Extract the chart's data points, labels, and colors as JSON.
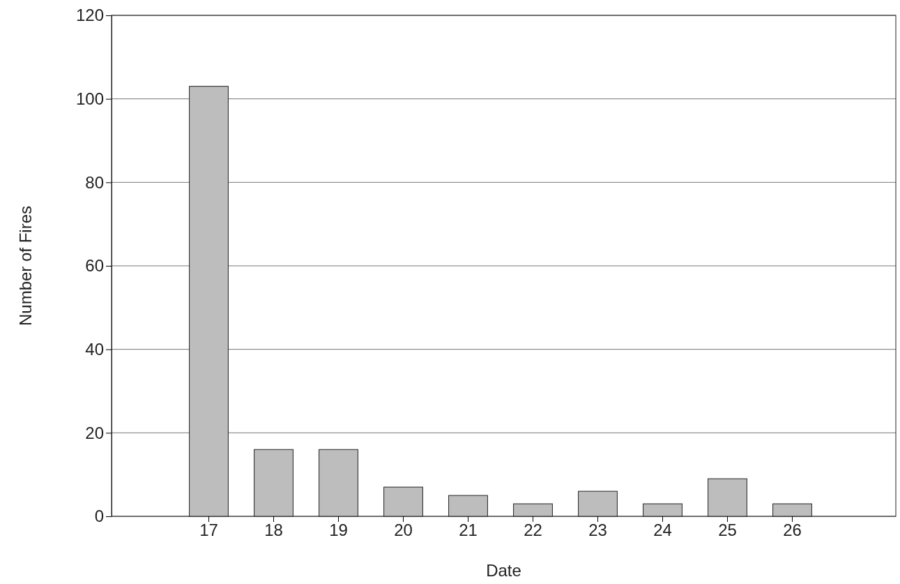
{
  "chart_data": {
    "type": "bar",
    "xlabel": "Date",
    "ylabel": "Number of Fires",
    "categories": [
      "17",
      "18",
      "19",
      "20",
      "21",
      "22",
      "23",
      "24",
      "25",
      "26"
    ],
    "values": [
      103,
      16,
      16,
      7,
      5,
      3,
      6,
      3,
      9,
      3
    ],
    "color": "#bdbdbd",
    "ylim": [
      0,
      120
    ],
    "yticks": [
      0,
      20,
      40,
      60,
      80,
      100,
      120
    ],
    "grid": "y"
  }
}
